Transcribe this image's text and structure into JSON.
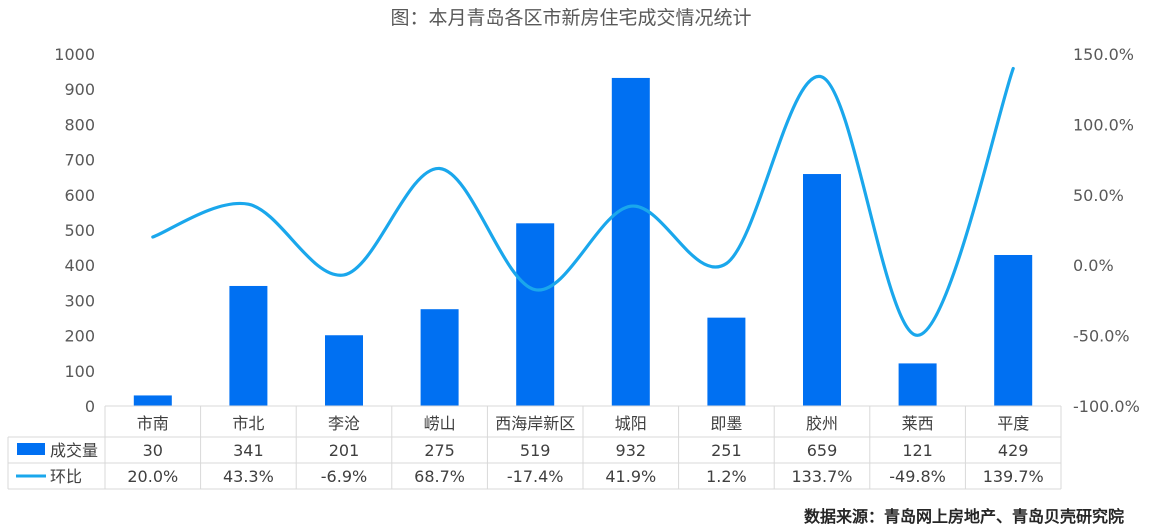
{
  "colors": {
    "bar": "#0070f2",
    "line": "#1aa7ec",
    "text": "#595959",
    "grid": "#d9d9d9"
  },
  "chart_data": {
    "type": "bar+line",
    "title": "图：本月青岛各区市新房住宅成交情况统计",
    "categories": [
      "市南",
      "市北",
      "李沧",
      "崂山",
      "西海岸新区",
      "城阳",
      "即墨",
      "胶州",
      "莱西",
      "平度"
    ],
    "series": [
      {
        "name": "成交量",
        "type": "bar",
        "axis": "left",
        "values": [
          30,
          341,
          201,
          275,
          519,
          932,
          251,
          659,
          121,
          429
        ],
        "labels": [
          "30",
          "341",
          "201",
          "275",
          "519",
          "932",
          "251",
          "659",
          "121",
          "429"
        ]
      },
      {
        "name": "环比",
        "type": "line",
        "axis": "right",
        "values": [
          20.0,
          43.3,
          -6.9,
          68.7,
          -17.4,
          41.9,
          1.2,
          133.7,
          -49.8,
          139.7
        ],
        "labels": [
          "20.0%",
          "43.3%",
          "-6.9%",
          "68.7%",
          "-17.4%",
          "41.9%",
          "1.2%",
          "133.7%",
          "-49.8%",
          "139.7%"
        ]
      }
    ],
    "y_left": {
      "range": [
        0,
        1000
      ],
      "ticks": [
        "0",
        "100",
        "200",
        "300",
        "400",
        "500",
        "600",
        "700",
        "800",
        "900",
        "1000"
      ]
    },
    "y_right": {
      "range": [
        -100,
        150
      ],
      "ticks": [
        "-100.0%",
        "-50.0%",
        "0.0%",
        "50.0%",
        "100.0%",
        "150.0%"
      ]
    },
    "grid": false,
    "legend": "data-table",
    "source": "数据来源：青岛网上房地产、青岛贝壳研究院"
  }
}
